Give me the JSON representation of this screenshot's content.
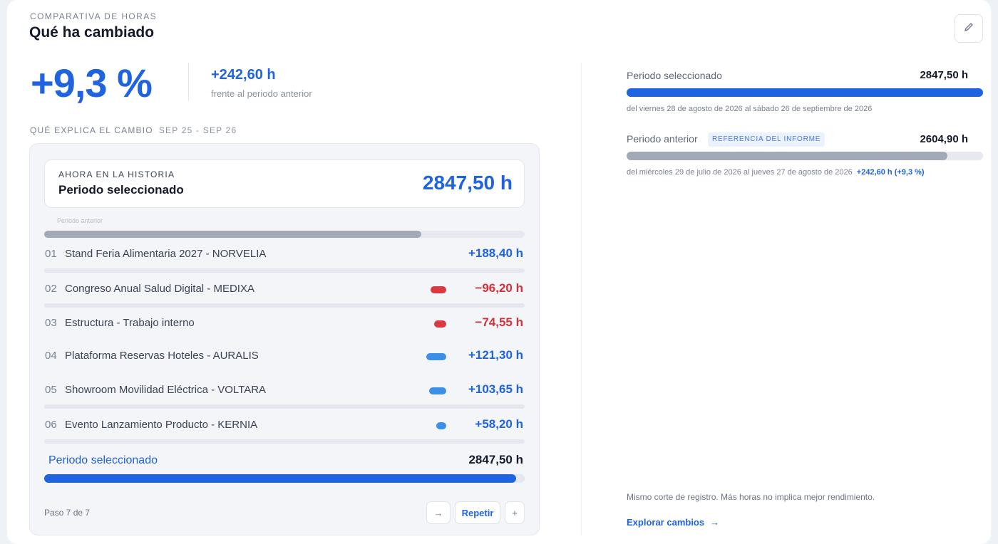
{
  "header": {
    "eyebrow": "COMPARATIVA DE HORAS",
    "title": "Qué ha cambiado",
    "edit_icon": "pencil-icon"
  },
  "summary": {
    "percent_change": "+9,3 %",
    "hours_change": "+242,60 h",
    "hours_change_caption": "frente al periodo anterior"
  },
  "explain": {
    "label": "QUÉ EXPLICA EL CAMBIO",
    "range": "SEP 25 - SEP 26"
  },
  "history": {
    "eyebrow": "AHORA EN LA HISTORIA",
    "title": "Periodo seleccionado",
    "value": "2847,50 h",
    "base_caption": "Periodo anterior",
    "base_fraction": 0.785
  },
  "contributors": [
    {
      "index": "01",
      "name": "Stand Feria Alimentaria 2027 - NORVELIA",
      "value": "+188,40 h",
      "hours": 188.4,
      "sign": "pos"
    },
    {
      "index": "02",
      "name": "Congreso Anual Salud Digital - MEDIXA",
      "value": "−96,20 h",
      "hours": -96.2,
      "sign": "neg"
    },
    {
      "index": "03",
      "name": "Estructura - Trabajo interno",
      "value": "−74,55 h",
      "hours": -74.55,
      "sign": "neg"
    },
    {
      "index": "04",
      "name": "Plataforma Reservas Hoteles - AURALIS",
      "value": "+121,30 h",
      "hours": 121.3,
      "sign": "pos"
    },
    {
      "index": "05",
      "name": "Showroom Movilidad Eléctrica - VOLTARA",
      "value": "+103,65 h",
      "hours": 103.65,
      "sign": "pos"
    },
    {
      "index": "06",
      "name": "Evento Lanzamiento Producto - KERNIA",
      "value": "+58,20 h",
      "hours": 58.2,
      "sign": "pos"
    }
  ],
  "total": {
    "label": "Periodo seleccionado",
    "value": "2847,50 h",
    "fraction": 0.982
  },
  "stepper": {
    "step_text": "Paso 7 de 7",
    "prev_icon": "arrow-right-icon",
    "repeat_label": "Repetir",
    "next_icon": "plus-icon"
  },
  "comparison": {
    "selected": {
      "label": "Periodo seleccionado",
      "value": "2847,50 h",
      "fraction": 1.0,
      "range": "del viernes 28 de agosto de 2026 al sábado 26 de septiembre de 2026"
    },
    "previous": {
      "label": "Periodo anterior",
      "badge": "REFERENCIA DEL INFORME",
      "value": "2604,90 h",
      "fraction": 0.9,
      "range": "del miércoles 29 de julio de 2026 al jueves 27 de agosto de 2026",
      "delta": "+242,60 h (+9,3 %)"
    },
    "colors": {
      "selected": "#1f63e0",
      "previous": "#a3aab7",
      "positive": "#3b8fe8",
      "negative": "#d93a40"
    }
  },
  "footer": {
    "note": "Mismo corte de registro. Más horas no implica mejor rendimiento.",
    "explore_label": "Explorar cambios",
    "explore_arrow": "→"
  }
}
